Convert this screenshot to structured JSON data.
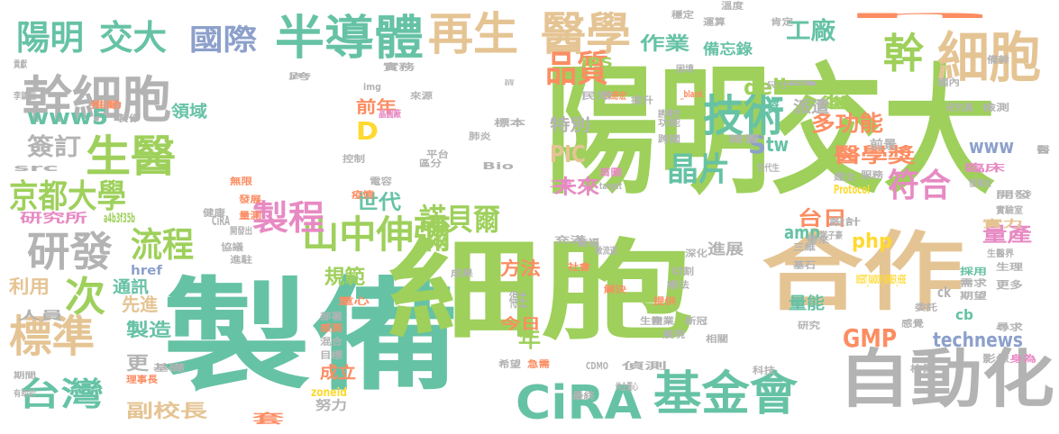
{
  "palette": {
    "green": "#9ed05b",
    "teal": "#66c2a5",
    "gray": "#b3b3b3",
    "tan": "#e5c494",
    "orange": "#fc8d62",
    "blue": "#8da0cb",
    "pink": "#e78ac3",
    "yellow": "#ffd92f"
  },
  "words": [
    {
      "t": "陽明交大",
      "c": "green"
    },
    {
      "t": "製備",
      "c": "teal"
    },
    {
      "t": "細胞",
      "c": "green"
    },
    {
      "t": "合作",
      "c": "tan"
    },
    {
      "t": "自動化",
      "c": "gray"
    },
    {
      "t": "幹細胞",
      "c": "gray"
    },
    {
      "t": "細胞",
      "c": "tan"
    },
    {
      "t": "半導體",
      "c": "teal"
    },
    {
      "t": "再生",
      "c": "tan"
    },
    {
      "t": "醫學",
      "c": "tan"
    },
    {
      "t": "陽明",
      "c": "teal"
    },
    {
      "t": "交大",
      "c": "teal"
    },
    {
      "t": "國際",
      "c": "blue"
    },
    {
      "t": "品質",
      "c": "orange"
    },
    {
      "t": "幹",
      "c": "green"
    },
    {
      "t": "技術",
      "c": "teal"
    },
    {
      "t": "生醫",
      "c": "green"
    },
    {
      "t": "京都大學",
      "c": "green"
    },
    {
      "t": "研發",
      "c": "gray"
    },
    {
      "t": "標準",
      "c": "tan"
    },
    {
      "t": "次",
      "c": "green"
    },
    {
      "t": "台灣",
      "c": "teal"
    },
    {
      "t": "CiRA",
      "c": "teal"
    },
    {
      "t": "基金會",
      "c": "teal"
    },
    {
      "t": "山中伸彌",
      "c": "green"
    },
    {
      "t": "製程",
      "c": "pink"
    },
    {
      "t": "流程",
      "c": "green"
    },
    {
      "t": "諾貝爾",
      "c": "green"
    },
    {
      "t": "晶片",
      "c": "teal"
    },
    {
      "t": "符合",
      "c": "pink"
    },
    {
      "t": "工廠",
      "c": "teal"
    },
    {
      "t": "作業",
      "c": "teal"
    },
    {
      "t": "delivery",
      "c": "green"
    },
    {
      "t": "www5",
      "c": "teal"
    },
    {
      "t": "簽訂",
      "c": "gray"
    },
    {
      "t": "PIC",
      "c": "tan"
    },
    {
      "t": "D",
      "c": "yellow"
    },
    {
      "t": "S",
      "c": "blue"
    },
    {
      "t": "tw",
      "c": "teal"
    },
    {
      "t": "世代",
      "c": "teal"
    },
    {
      "t": "www",
      "c": "blue"
    },
    {
      "t": "多功能",
      "c": "orange"
    },
    {
      "t": "醫學獎",
      "c": "orange"
    },
    {
      "t": "台日",
      "c": "orange"
    },
    {
      "t": "量產",
      "c": "pink"
    },
    {
      "t": "GMP",
      "c": "orange"
    },
    {
      "t": "technews",
      "c": "blue"
    },
    {
      "t": "php",
      "c": "yellow"
    },
    {
      "t": "amp",
      "c": "teal"
    },
    {
      "t": "未來",
      "c": "pink"
    },
    {
      "t": "規範",
      "c": "green"
    },
    {
      "t": "方法",
      "c": "orange"
    },
    {
      "t": "特別",
      "c": "gray"
    },
    {
      "t": "前年",
      "c": "orange"
    },
    {
      "t": "領域",
      "c": "teal"
    },
    {
      "t": "通訊",
      "c": "teal"
    },
    {
      "t": "先進",
      "c": "tan"
    },
    {
      "t": "製造",
      "c": "teal"
    },
    {
      "t": "副校長",
      "c": "tan"
    },
    {
      "t": "利用",
      "c": "tan"
    },
    {
      "t": "年",
      "c": "green"
    },
    {
      "t": "更",
      "c": "gray"
    },
    {
      "t": "成立",
      "c": "orange"
    },
    {
      "t": "今日",
      "c": "orange"
    },
    {
      "t": "量能",
      "c": "teal"
    },
    {
      "t": "進展",
      "c": "gray"
    },
    {
      "t": "備忘錄",
      "c": "teal"
    },
    {
      "t": "資",
      "c": "teal"
    },
    {
      "t": "繼",
      "c": "green"
    },
    {
      "t": "派遣",
      "c": "gray"
    },
    {
      "t": "iPS",
      "c": "green"
    },
    {
      "t": "得主",
      "c": "gray"
    },
    {
      "t": "套",
      "c": "orange"
    },
    {
      "t": "努力",
      "c": "gray"
    },
    {
      "t": "人員",
      "c": "gray"
    },
    {
      "t": "研究所",
      "c": "pink"
    },
    {
      "t": "a4b3f35b",
      "c": "green"
    },
    {
      "t": "href",
      "c": "blue"
    },
    {
      "t": "CiRA",
      "c": "gray"
    },
    {
      "t": "cb",
      "c": "teal"
    },
    {
      "t": "ck",
      "c": "gray"
    },
    {
      "t": "n",
      "c": "orange"
    },
    {
      "t": "INSERT_RANDOM_NUMBER_HERE",
      "c": "yellow"
    },
    {
      "t": "Protocol",
      "c": "yellow"
    },
    {
      "t": "zoneid",
      "c": "yellow"
    },
    {
      "t": "CDMO",
      "c": "gray"
    },
    {
      "t": "Bio",
      "c": "gray"
    },
    {
      "t": "target",
      "c": "gray"
    },
    {
      "t": "img",
      "c": "gray"
    },
    {
      "t": "src",
      "c": "gray"
    },
    {
      "t": "_blank",
      "c": "orange"
    },
    {
      "t": "avw",
      "c": "gray"
    },
    {
      "t": "a",
      "c": "gray"
    },
    {
      "t": "研究員",
      "c": "gray"
    },
    {
      "t": "檢測",
      "c": "gray"
    },
    {
      "t": "國內",
      "c": "gray"
    },
    {
      "t": "尺寸",
      "c": "gray"
    },
    {
      "t": "前景",
      "c": "gray"
    },
    {
      "t": "臨床",
      "c": "pink"
    },
    {
      "t": "發展出",
      "c": "gray"
    },
    {
      "t": "開發",
      "c": "gray"
    },
    {
      "t": "實驗室",
      "c": "gray"
    },
    {
      "t": "實力",
      "c": "tan"
    },
    {
      "t": "生醫界",
      "c": "gray"
    },
    {
      "t": "生理",
      "c": "gray"
    },
    {
      "t": "更多",
      "c": "gray"
    },
    {
      "t": "採用",
      "c": "teal"
    },
    {
      "t": "需求",
      "c": "gray"
    },
    {
      "t": "期望",
      "c": "gray"
    },
    {
      "t": "尋求",
      "c": "gray"
    },
    {
      "t": "影像",
      "c": "gray"
    },
    {
      "t": "身為",
      "c": "pink"
    },
    {
      "t": "校長",
      "c": "gray"
    },
    {
      "t": "科技",
      "c": "gray"
    },
    {
      "t": "偵測",
      "c": "gray"
    },
    {
      "t": "供企圖心",
      "c": "gray"
    },
    {
      "t": "最終",
      "c": "gray"
    },
    {
      "t": "急需",
      "c": "orange"
    },
    {
      "t": "希望",
      "c": "gray"
    },
    {
      "t": "部署",
      "c": "gray"
    },
    {
      "t": "感測",
      "c": "orange"
    },
    {
      "t": "混合",
      "c": "gray"
    },
    {
      "t": "目標",
      "c": "gray"
    },
    {
      "t": "基礎",
      "c": "gray"
    },
    {
      "t": "理事長",
      "c": "orange"
    },
    {
      "t": "有助於",
      "c": "gray"
    },
    {
      "t": "期間",
      "c": "gray"
    },
    {
      "t": "重心",
      "c": "orange"
    },
    {
      "t": "開發出",
      "c": "gray"
    },
    {
      "t": "協議",
      "c": "gray"
    },
    {
      "t": "進駐",
      "c": "gray"
    },
    {
      "t": "健康",
      "c": "gray"
    },
    {
      "t": "發展",
      "c": "orange"
    },
    {
      "t": "量測",
      "c": "orange"
    },
    {
      "t": "無限",
      "c": "orange"
    },
    {
      "t": "控制",
      "c": "gray"
    },
    {
      "t": "疫情",
      "c": "orange"
    },
    {
      "t": "電容",
      "c": "gray"
    },
    {
      "t": "區分",
      "c": "gray"
    },
    {
      "t": "平台",
      "c": "gray"
    },
    {
      "t": "肺炎",
      "c": "gray"
    },
    {
      "t": "標本",
      "c": "gray"
    },
    {
      "t": "晶圓廠",
      "c": "pink"
    },
    {
      "t": "來源",
      "c": "gray"
    },
    {
      "t": "製作",
      "c": "gray"
    },
    {
      "t": "推動",
      "c": "orange"
    },
    {
      "t": "李鎮宜",
      "c": "gray"
    },
    {
      "t": "貢獻",
      "c": "gray"
    },
    {
      "t": "跨",
      "c": "gray"
    },
    {
      "t": "實務",
      "c": "gray"
    },
    {
      "t": "林奇宏",
      "c": "orange"
    },
    {
      "t": "民眾",
      "c": "gray"
    },
    {
      "t": "誘導性",
      "c": "gray"
    },
    {
      "t": "二維",
      "c": "pink"
    },
    {
      "t": "功能",
      "c": "gray"
    },
    {
      "t": "跨國",
      "c": "gray"
    },
    {
      "t": "建置",
      "c": "gray"
    },
    {
      "t": "世代生",
      "c": "gray"
    },
    {
      "t": "首圖",
      "c": "pink"
    },
    {
      "t": "建立",
      "c": "gray"
    },
    {
      "t": "服務",
      "c": "gray"
    },
    {
      "t": "設計",
      "c": "gray"
    },
    {
      "t": "鄭子豪",
      "c": "gray"
    },
    {
      "t": "帶來",
      "c": "gray"
    },
    {
      "t": "三維",
      "c": "gray"
    },
    {
      "t": "基石",
      "c": "gray"
    },
    {
      "t": "切割",
      "c": "gray"
    },
    {
      "t": "深化",
      "c": "gray"
    },
    {
      "t": "療法",
      "c": "gray"
    },
    {
      "t": "提供",
      "c": "orange"
    },
    {
      "t": "產業",
      "c": "gray"
    },
    {
      "t": "展現",
      "c": "gray"
    },
    {
      "t": "解決",
      "c": "orange"
    },
    {
      "t": "生物",
      "c": "gray"
    },
    {
      "t": "新冠",
      "c": "gray"
    },
    {
      "t": "相關",
      "c": "gray"
    },
    {
      "t": "研究",
      "c": "gray"
    },
    {
      "t": "委託",
      "c": "gray"
    },
    {
      "t": "感覺",
      "c": "gray"
    },
    {
      "t": "充滿",
      "c": "gray"
    },
    {
      "t": "造福",
      "c": "gray"
    },
    {
      "t": "微流道",
      "c": "gray"
    },
    {
      "t": "社會",
      "c": "orange"
    },
    {
      "t": "成果",
      "c": "gray"
    },
    {
      "t": "提升",
      "c": "gray"
    },
    {
      "t": "運算",
      "c": "gray"
    },
    {
      "t": "溫度",
      "c": "gray"
    },
    {
      "t": "肯定",
      "c": "gray"
    },
    {
      "t": "穩定",
      "c": "gray"
    },
    {
      "t": "備幹",
      "c": "gray"
    },
    {
      "t": "困境",
      "c": "gray"
    },
    {
      "t": "醫",
      "c": "gray"
    },
    {
      "t": "交流",
      "c": "gray"
    },
    {
      "t": "製",
      "c": "gray"
    }
  ]
}
